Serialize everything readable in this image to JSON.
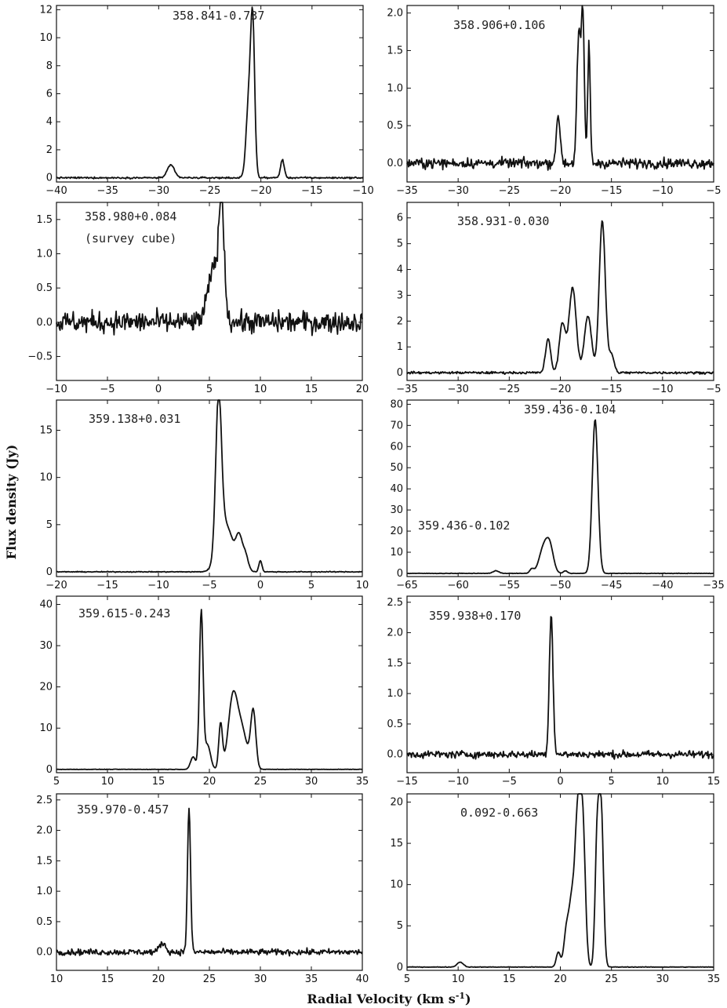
{
  "figure": {
    "ylabel": "Flux density (Jy)",
    "xlabel": "Radial Velocity (km s-1)",
    "xlabel_main": "Radial Velocity (km s",
    "xlabel_sup": "-1",
    "xlabel_close": ")"
  },
  "chart_data": [
    {
      "type": "line",
      "label": "358.841-0.737",
      "xlim": [
        -40,
        -10
      ],
      "ylim": [
        -0.3,
        12.3
      ],
      "xticks": [
        -40,
        -35,
        -30,
        -25,
        -20,
        -15,
        -10
      ],
      "yticks": [
        0,
        2,
        4,
        6,
        8,
        10,
        12
      ],
      "noise": 0.1,
      "peaks": [
        {
          "x": -28.8,
          "y": 0.9,
          "w": 0.35
        },
        {
          "x": -21.2,
          "y": 5.2,
          "w": 0.25
        },
        {
          "x": -20.8,
          "y": 10.6,
          "w": 0.2
        },
        {
          "x": -17.9,
          "y": 1.3,
          "w": 0.18
        }
      ]
    },
    {
      "type": "line",
      "label": "358.906+0.106",
      "xlim": [
        -35,
        -5
      ],
      "ylim": [
        -0.25,
        2.1
      ],
      "xticks": [
        -35,
        -30,
        -25,
        -20,
        -15,
        -10,
        -5
      ],
      "yticks": [
        0.0,
        0.5,
        1.0,
        1.5,
        2.0
      ],
      "noise": 0.12,
      "peaks": [
        {
          "x": -20.2,
          "y": 0.6,
          "w": 0.2
        },
        {
          "x": -18.2,
          "y": 1.7,
          "w": 0.18
        },
        {
          "x": -17.8,
          "y": 1.9,
          "w": 0.15
        },
        {
          "x": -17.2,
          "y": 1.6,
          "w": 0.12
        }
      ]
    },
    {
      "type": "line",
      "label": "358.980+0.084",
      "sublabel": "(survey cube)",
      "xlim": [
        -10,
        20
      ],
      "ylim": [
        -0.85,
        1.75
      ],
      "xticks": [
        -10,
        -5,
        0,
        5,
        10,
        15,
        20
      ],
      "yticks": [
        -0.5,
        0.0,
        0.5,
        1.0,
        1.5
      ],
      "noise": 0.28,
      "peaks": [
        {
          "x": 5.5,
          "y": 0.8,
          "w": 0.6
        },
        {
          "x": 6.2,
          "y": 1.5,
          "w": 0.25
        }
      ]
    },
    {
      "type": "line",
      "label": "358.931-0.030",
      "xlim": [
        -35,
        -5
      ],
      "ylim": [
        -0.3,
        6.6
      ],
      "xticks": [
        -35,
        -30,
        -25,
        -20,
        -15,
        -10,
        -5
      ],
      "yticks": [
        0,
        1,
        2,
        3,
        4,
        5,
        6
      ],
      "noise": 0.08,
      "peaks": [
        {
          "x": -21.2,
          "y": 1.3,
          "w": 0.25
        },
        {
          "x": -19.8,
          "y": 1.9,
          "w": 0.3
        },
        {
          "x": -18.8,
          "y": 3.3,
          "w": 0.35
        },
        {
          "x": -17.3,
          "y": 2.2,
          "w": 0.35
        },
        {
          "x": -15.9,
          "y": 5.9,
          "w": 0.3
        },
        {
          "x": -15.0,
          "y": 0.7,
          "w": 0.25
        }
      ]
    },
    {
      "type": "line",
      "label": "359.138+0.031",
      "xlim": [
        -20,
        10
      ],
      "ylim": [
        -0.5,
        18.2
      ],
      "xticks": [
        -20,
        -15,
        -10,
        -5,
        0,
        5,
        10
      ],
      "yticks": [
        0,
        5,
        10,
        15
      ],
      "noise": 0.08,
      "peaks": [
        {
          "x": -4.1,
          "y": 16.3,
          "w": 0.28
        },
        {
          "x": -3.4,
          "y": 5.0,
          "w": 0.7
        },
        {
          "x": -2.1,
          "y": 3.0,
          "w": 0.3
        },
        {
          "x": -1.5,
          "y": 1.8,
          "w": 0.3
        },
        {
          "x": 0.0,
          "y": 1.2,
          "w": 0.15
        }
      ]
    },
    {
      "type": "line",
      "label": "359.436-0.104",
      "label2": "359.436-0.102",
      "xlim": [
        -65,
        -35
      ],
      "ylim": [
        -1.5,
        82
      ],
      "xticks": [
        -65,
        -60,
        -55,
        -50,
        -45,
        -40,
        -35
      ],
      "yticks": [
        0,
        10,
        20,
        30,
        40,
        50,
        60,
        70,
        80
      ],
      "noise": 0.2,
      "peaks": [
        {
          "x": -56.3,
          "y": 1.2,
          "w": 0.3
        },
        {
          "x": -52.8,
          "y": 2.0,
          "w": 0.2
        },
        {
          "x": -51.6,
          "y": 12.5,
          "w": 0.45
        },
        {
          "x": -51.0,
          "y": 10.0,
          "w": 0.35
        },
        {
          "x": -49.5,
          "y": 1.2,
          "w": 0.2
        },
        {
          "x": -46.6,
          "y": 73.0,
          "w": 0.28
        }
      ]
    },
    {
      "type": "line",
      "label": "359.615-0.243",
      "xlim": [
        5,
        35
      ],
      "ylim": [
        -0.8,
        42
      ],
      "xticks": [
        5,
        10,
        15,
        20,
        25,
        30,
        35
      ],
      "yticks": [
        0,
        10,
        20,
        30,
        40
      ],
      "noise": 0.1,
      "peaks": [
        {
          "x": 18.4,
          "y": 3.0,
          "w": 0.25
        },
        {
          "x": 19.2,
          "y": 38.0,
          "w": 0.18
        },
        {
          "x": 19.8,
          "y": 6.0,
          "w": 0.3
        },
        {
          "x": 21.1,
          "y": 11.0,
          "w": 0.18
        },
        {
          "x": 22.3,
          "y": 17.0,
          "w": 0.45
        },
        {
          "x": 23.2,
          "y": 9.0,
          "w": 0.5
        },
        {
          "x": 24.3,
          "y": 14.0,
          "w": 0.25
        }
      ]
    },
    {
      "type": "line",
      "label": "359.938+0.170",
      "xlim": [
        -15,
        15
      ],
      "ylim": [
        -0.3,
        2.6
      ],
      "xticks": [
        -15,
        -10,
        -5,
        0,
        5,
        10,
        15
      ],
      "yticks": [
        0.0,
        0.5,
        1.0,
        1.5,
        2.0,
        2.5
      ],
      "noise": 0.11,
      "peaks": [
        {
          "x": -0.9,
          "y": 2.3,
          "w": 0.18
        }
      ]
    },
    {
      "type": "line",
      "label": "359.970-0.457",
      "xlim": [
        10,
        40
      ],
      "ylim": [
        -0.3,
        2.6
      ],
      "xticks": [
        10,
        15,
        20,
        25,
        30,
        35,
        40
      ],
      "yticks": [
        0.0,
        0.5,
        1.0,
        1.5,
        2.0,
        2.5
      ],
      "noise": 0.09,
      "peaks": [
        {
          "x": 20.4,
          "y": 0.15,
          "w": 0.3
        },
        {
          "x": 23.0,
          "y": 2.35,
          "w": 0.15
        }
      ]
    },
    {
      "type": "line",
      "label": "0.092-0.663",
      "xlim": [
        5,
        35
      ],
      "ylim": [
        -0.4,
        21
      ],
      "xticks": [
        5,
        10,
        15,
        20,
        25,
        30,
        35
      ],
      "yticks": [
        0,
        5,
        10,
        15,
        20
      ],
      "noise": 0.06,
      "peaks": [
        {
          "x": 10.2,
          "y": 0.6,
          "w": 0.3
        },
        {
          "x": 19.8,
          "y": 1.8,
          "w": 0.2
        },
        {
          "x": 20.6,
          "y": 4.5,
          "w": 0.25
        },
        {
          "x": 21.1,
          "y": 7.0,
          "w": 0.25
        },
        {
          "x": 21.7,
          "y": 18.2,
          "w": 0.28
        },
        {
          "x": 22.2,
          "y": 16.0,
          "w": 0.25
        },
        {
          "x": 23.6,
          "y": 15.0,
          "w": 0.2
        },
        {
          "x": 24.0,
          "y": 18.5,
          "w": 0.22
        }
      ]
    }
  ]
}
